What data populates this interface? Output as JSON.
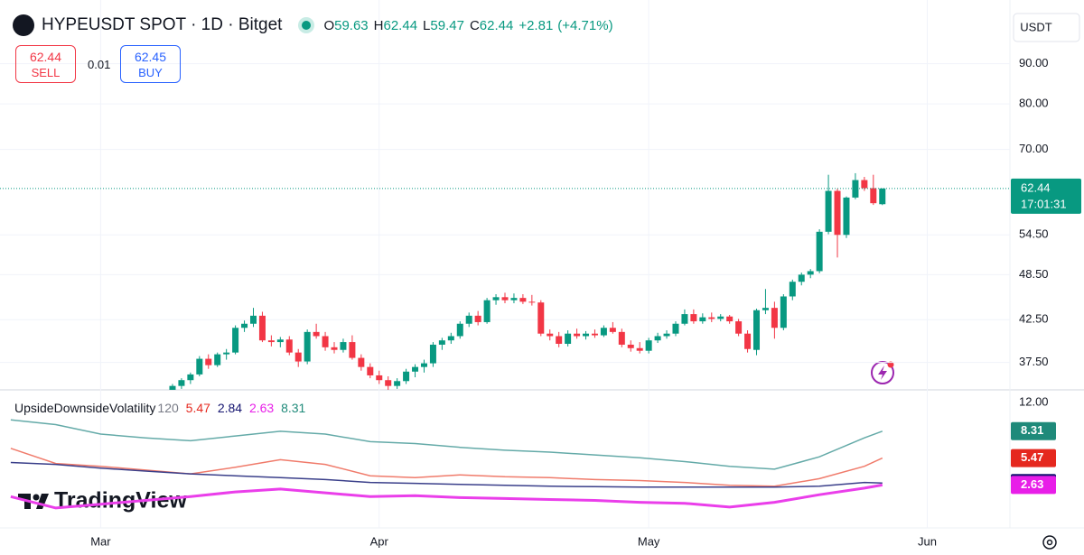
{
  "header": {
    "symbol": "HYPEUSDT SPOT · 1D · Bitget",
    "ohlc_labels": [
      "O",
      "H",
      "L",
      "C"
    ],
    "change": "+2.81",
    "change_pct": "(+4.71%)"
  },
  "trade": {
    "sell_price": "62.44",
    "sell": "SELL",
    "spread": "0.01",
    "buy_price": "62.45",
    "buy": "BUY"
  },
  "currency": "USDT",
  "logo": "TradingView",
  "chart_data": [
    {
      "type": "candlestick",
      "log": true,
      "grid": true,
      "up_color": "#089981",
      "down_color": "#f23645",
      "xlim": [
        -11.2,
        101.2
      ],
      "xticks": [
        {
          "value": 0,
          "label": "Mar"
        },
        {
          "value": 31,
          "label": "Apr"
        },
        {
          "value": 61,
          "label": "May"
        },
        {
          "value": 92,
          "label": "Jun"
        }
      ],
      "ylim": [
        34.6,
        108.5
      ],
      "yticks": [
        {
          "value": 37.5,
          "label": "37.50"
        },
        {
          "value": 42.5,
          "label": "42.50"
        },
        {
          "value": 48.5,
          "label": "48.50"
        },
        {
          "value": 54.5,
          "label": "54.50"
        },
        {
          "value": 70,
          "label": "70.00"
        },
        {
          "value": 80,
          "label": "80.00"
        },
        {
          "value": 90,
          "label": "90.00"
        }
      ],
      "countdown": "17:01:31",
      "x": [
        8,
        9,
        10,
        11,
        12,
        13,
        14,
        15,
        16,
        17,
        18,
        19,
        20,
        21,
        22,
        23,
        24,
        25,
        26,
        27,
        28,
        29,
        30,
        31,
        32,
        33,
        34,
        35,
        36,
        37,
        38,
        39,
        40,
        41,
        42,
        43,
        44,
        45,
        46,
        47,
        48,
        49,
        50,
        51,
        52,
        53,
        54,
        55,
        56,
        57,
        58,
        59,
        60,
        61,
        62,
        63,
        64,
        65,
        66,
        67,
        68,
        69,
        70,
        71,
        72,
        73,
        74,
        75,
        76,
        77,
        78,
        79,
        80,
        81,
        82,
        83,
        84,
        85,
        86,
        87
      ],
      "open": [
        34.4,
        35.0,
        35.6,
        36.2,
        37.9,
        37.2,
        38.4,
        38.6,
        41.5,
        42.0,
        43.0,
        40.0,
        39.8,
        40.1,
        38.6,
        37.6,
        41.0,
        40.5,
        39.2,
        38.9,
        39.8,
        38.0,
        37.0,
        36.1,
        35.6,
        35.0,
        35.5,
        36.5,
        37.0,
        37.4,
        39.5,
        40.0,
        40.5,
        42.0,
        43.0,
        42.2,
        45.0,
        45.4,
        45.0,
        45.3,
        44.8,
        44.7,
        40.8,
        40.5,
        39.6,
        40.8,
        40.5,
        40.8,
        40.6,
        41.5,
        41.0,
        39.5,
        39.1,
        38.8,
        40.0,
        40.5,
        40.8,
        42.0,
        43.2,
        42.3,
        42.8,
        42.6,
        42.9,
        42.3,
        40.8,
        38.9,
        43.7,
        44.0,
        41.5,
        45.5,
        47.5,
        48.5,
        49.0,
        55.0,
        62.0,
        54.5,
        60.8,
        64.0,
        62.5,
        59.63
      ],
      "high": [
        35.2,
        35.8,
        36.4,
        38.2,
        38.4,
        38.6,
        39.0,
        41.8,
        42.4,
        44.0,
        43.5,
        40.6,
        40.4,
        40.5,
        39.0,
        41.3,
        42.0,
        41.0,
        39.8,
        40.2,
        40.6,
        38.4,
        37.4,
        36.6,
        36.0,
        35.8,
        36.8,
        37.3,
        37.8,
        39.8,
        40.3,
        40.9,
        42.3,
        43.4,
        43.6,
        45.3,
        45.8,
        46.0,
        45.9,
        45.8,
        45.7,
        45.0,
        41.3,
        41.0,
        41.2,
        41.4,
        41.1,
        41.3,
        41.8,
        42.2,
        41.4,
        40.0,
        39.8,
        40.3,
        40.9,
        41.2,
        42.3,
        43.8,
        43.8,
        43.3,
        43.4,
        43.2,
        43.1,
        42.6,
        41.2,
        43.9,
        46.5,
        44.8,
        45.8,
        47.8,
        48.8,
        49.3,
        55.4,
        65.0,
        62.4,
        61.0,
        65.3,
        64.6,
        65.0,
        62.44
      ],
      "low": [
        34.0,
        34.7,
        35.2,
        36.0,
        36.8,
        37.0,
        37.8,
        38.4,
        41.0,
        41.6,
        39.8,
        39.3,
        39.2,
        38.3,
        37.0,
        37.3,
        40.2,
        38.8,
        38.5,
        38.6,
        37.8,
        36.6,
        35.8,
        35.2,
        34.6,
        34.7,
        35.2,
        35.9,
        36.4,
        37.0,
        38.9,
        39.6,
        40.2,
        41.6,
        41.8,
        42.0,
        44.4,
        44.6,
        44.6,
        44.5,
        44.3,
        40.5,
        40.0,
        39.2,
        39.3,
        40.2,
        40.1,
        40.3,
        40.4,
        40.8,
        39.2,
        38.7,
        38.5,
        38.5,
        39.7,
        40.2,
        40.5,
        41.8,
        42.0,
        42.0,
        42.2,
        42.3,
        42.0,
        40.5,
        38.6,
        38.3,
        43.2,
        40.2,
        41.2,
        45.0,
        47.0,
        48.0,
        48.7,
        54.6,
        51.0,
        54.0,
        60.5,
        62.0,
        59.5,
        59.47
      ],
      "close": [
        35.0,
        35.6,
        36.2,
        37.9,
        37.2,
        38.4,
        38.6,
        41.5,
        42.0,
        43.0,
        40.0,
        39.8,
        40.1,
        38.6,
        37.6,
        41.0,
        40.5,
        39.2,
        38.9,
        39.8,
        38.0,
        37.0,
        36.1,
        35.6,
        35.0,
        35.5,
        36.5,
        37.0,
        37.4,
        39.5,
        40.0,
        40.5,
        42.0,
        43.0,
        42.2,
        45.0,
        45.4,
        45.0,
        45.3,
        44.8,
        44.7,
        40.8,
        40.5,
        39.6,
        40.8,
        40.5,
        40.8,
        40.6,
        41.5,
        41.0,
        39.5,
        39.1,
        38.8,
        40.0,
        40.5,
        40.8,
        42.0,
        43.2,
        42.3,
        42.8,
        42.6,
        42.9,
        42.3,
        40.8,
        39.0,
        43.7,
        44.0,
        41.5,
        45.5,
        47.5,
        48.5,
        49.0,
        55.0,
        62.0,
        54.5,
        60.8,
        64.0,
        62.5,
        59.8,
        62.44
      ]
    },
    {
      "type": "line",
      "title": "UpsideDownsideVolatility",
      "length": "120",
      "xlim": [
        -11.2,
        101.2
      ],
      "ylim": [
        -1.9,
        12.67
      ],
      "yticks": [
        {
          "value": 12,
          "label": "12.00"
        }
      ],
      "x": [
        -10,
        -5,
        0,
        5,
        10,
        15,
        20,
        25,
        30,
        35,
        40,
        45,
        50,
        55,
        60,
        65,
        70,
        75,
        80,
        85,
        87
      ],
      "series": [
        {
          "color": "#f07b6b",
          "tag_color": "#e5281e",
          "values": [
            6.5,
            4.9,
            4.6,
            4.2,
            3.8,
            4.5,
            5.3,
            4.8,
            3.6,
            3.4,
            3.7,
            3.5,
            3.4,
            3.2,
            3.1,
            2.9,
            2.6,
            2.5,
            3.3,
            4.6,
            5.47
          ]
        },
        {
          "color": "#3a3f8a",
          "tag_color": "#141470",
          "values": [
            5.0,
            4.8,
            4.4,
            4.1,
            3.8,
            3.6,
            3.4,
            3.2,
            2.9,
            2.8,
            2.7,
            2.6,
            2.5,
            2.45,
            2.4,
            2.4,
            2.4,
            2.4,
            2.5,
            2.9,
            2.84
          ]
        },
        {
          "color": "#ea3eea",
          "tag_color": "#e81ee8",
          "values": [
            1.4,
            0.2,
            0.6,
            1.0,
            1.4,
            1.9,
            2.2,
            1.8,
            1.4,
            1.5,
            1.3,
            1.2,
            1.1,
            1.0,
            0.8,
            0.7,
            0.3,
            0.8,
            1.6,
            2.3,
            2.63
          ]
        },
        {
          "color": "#64aaa8",
          "tag_color": "#1f8a7a",
          "values": [
            9.5,
            9.0,
            8.0,
            7.6,
            7.3,
            7.8,
            8.3,
            8.0,
            7.2,
            7.0,
            6.6,
            6.3,
            6.1,
            5.8,
            5.5,
            5.1,
            4.6,
            4.3,
            5.6,
            7.6,
            8.31
          ]
        }
      ]
    }
  ]
}
